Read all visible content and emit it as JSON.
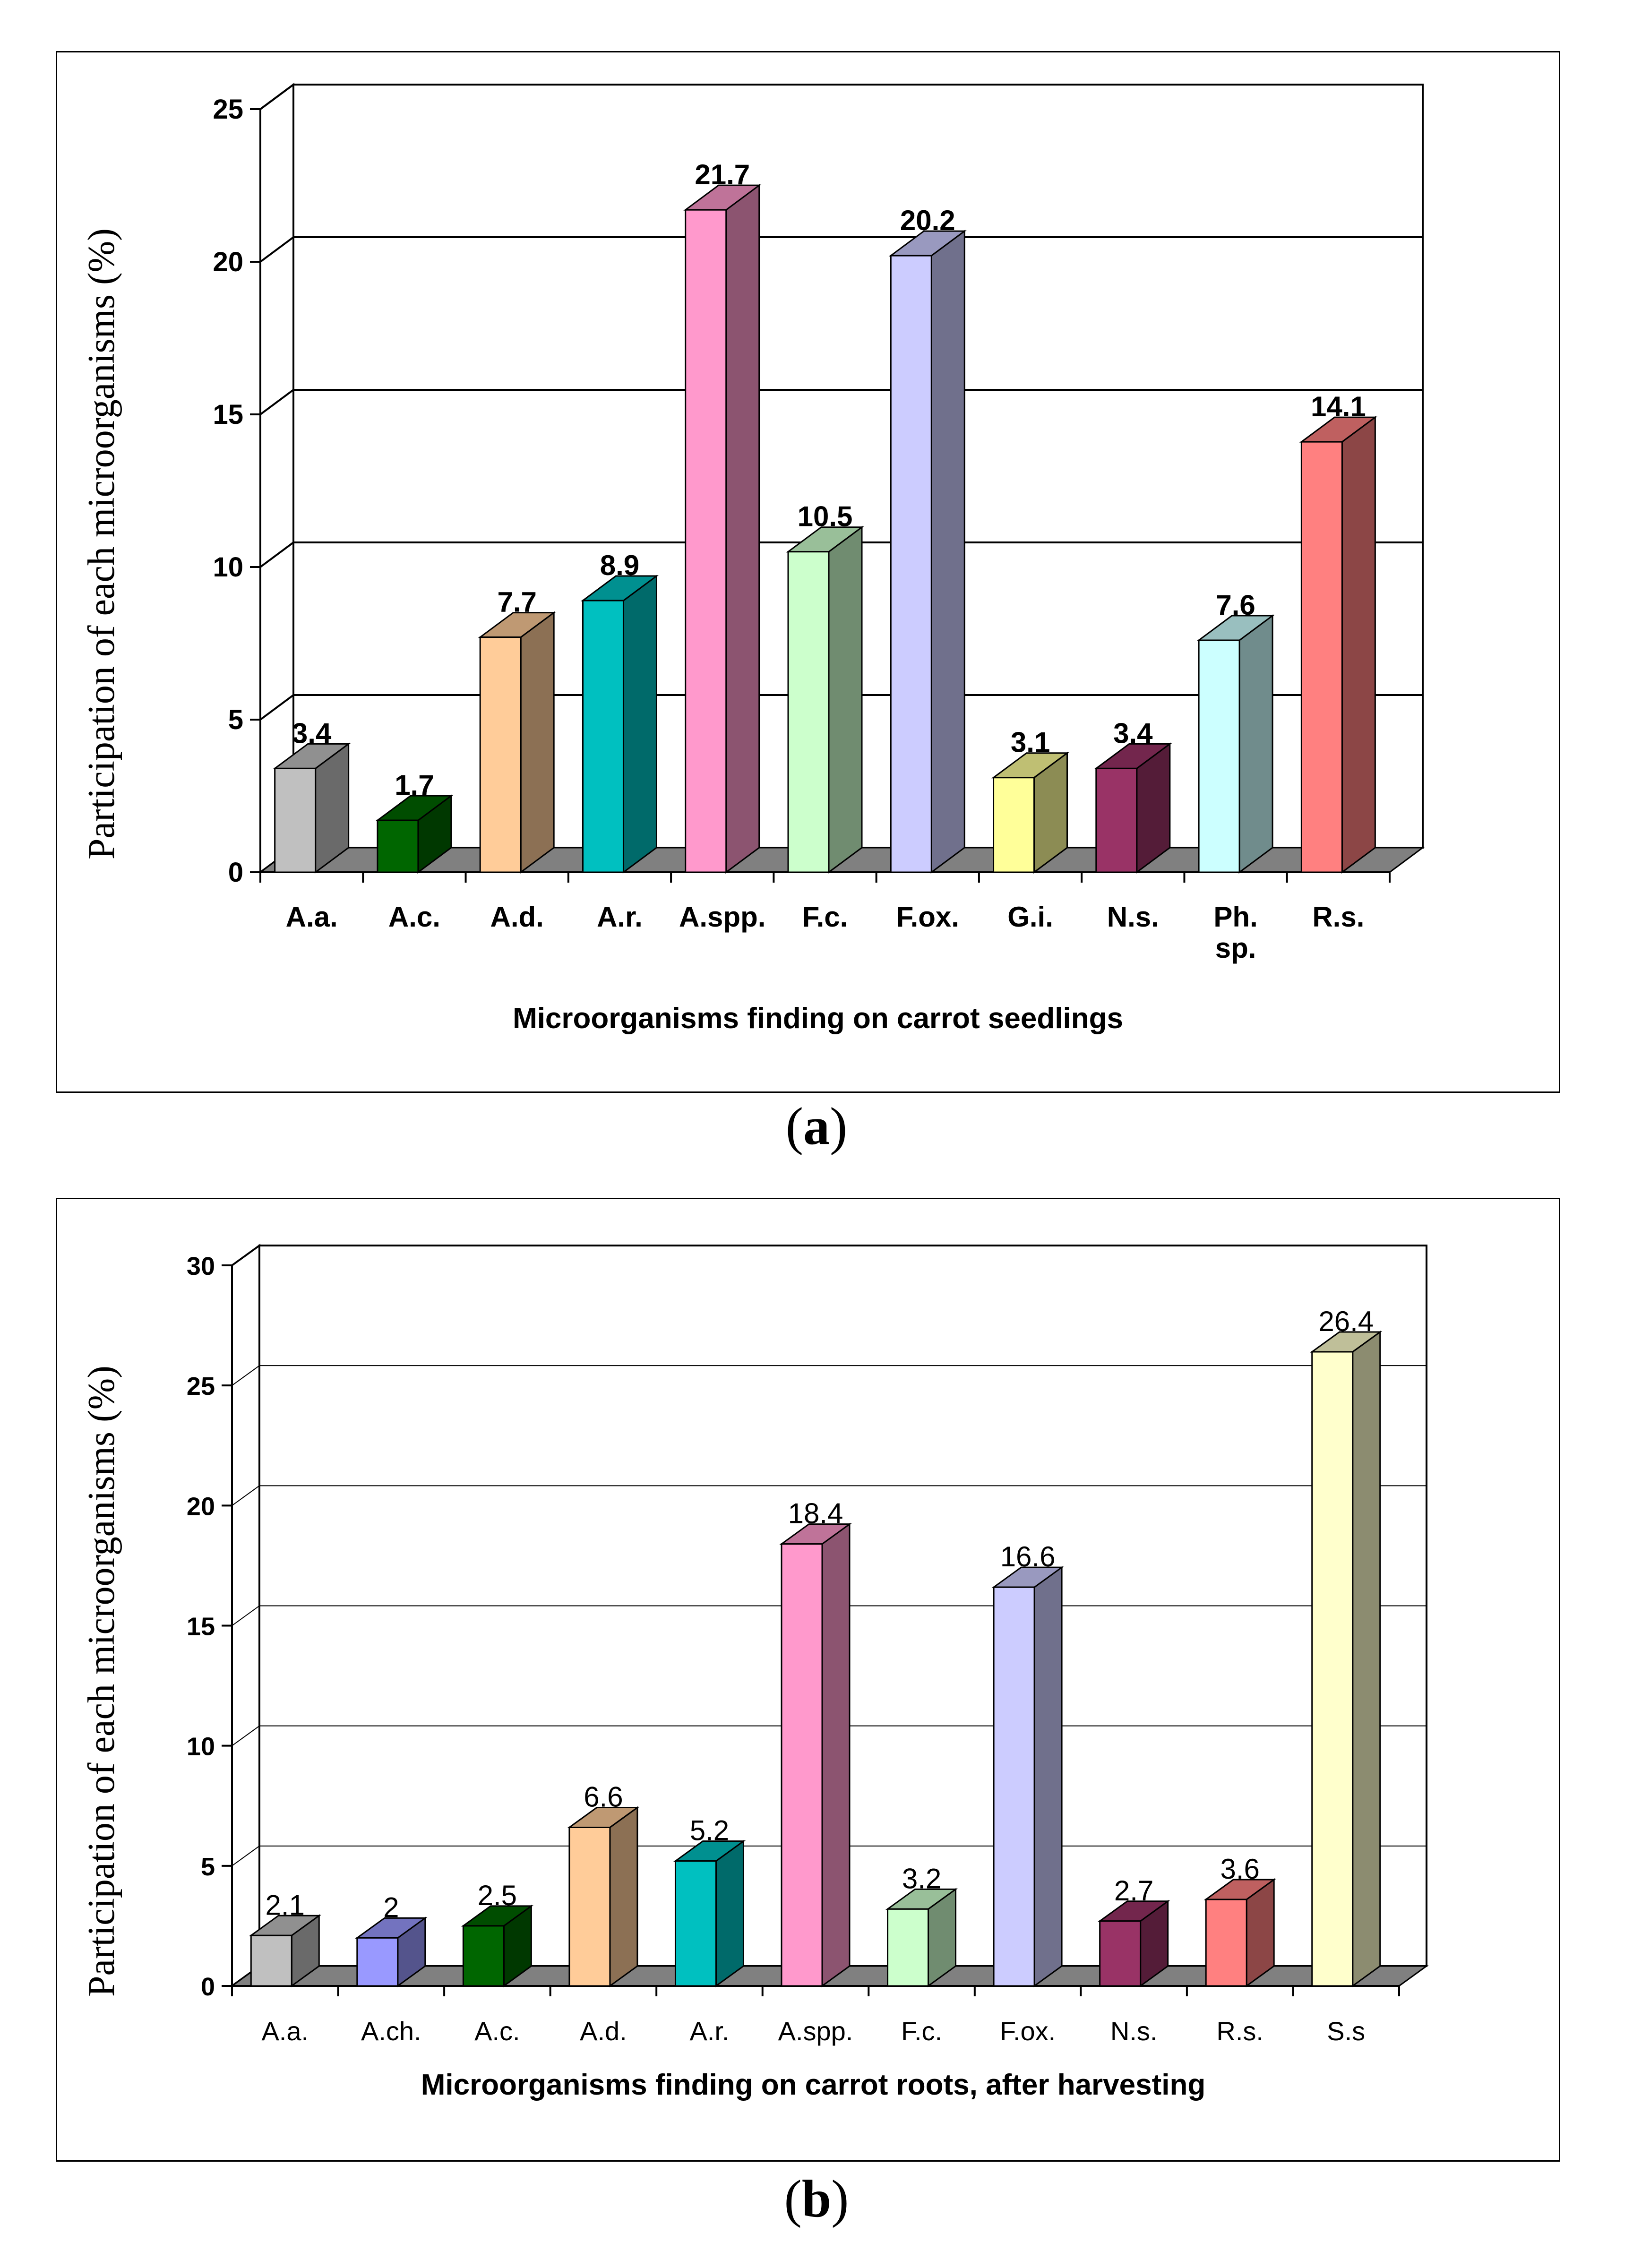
{
  "chart_data": [
    {
      "type": "bar",
      "panel": "a",
      "categories": [
        "A.a.",
        "A.c.",
        "A.d.",
        "A.r.",
        "A.spp.",
        "F.c.",
        "F.ox.",
        "G.i.",
        "N.s.",
        "Ph. sp.",
        "R.s."
      ],
      "category_lines": [
        [
          "A.a."
        ],
        [
          "A.c."
        ],
        [
          "A.d."
        ],
        [
          "A.r."
        ],
        [
          "A.spp."
        ],
        [
          "F.c."
        ],
        [
          "F.ox."
        ],
        [
          "G.i."
        ],
        [
          "N.s."
        ],
        [
          "Ph.",
          "sp."
        ],
        [
          "R.s."
        ]
      ],
      "values": [
        3.4,
        1.7,
        7.7,
        8.9,
        21.7,
        10.5,
        20.2,
        3.1,
        3.4,
        7.6,
        14.1
      ],
      "data_labels": [
        "3.4",
        "1.7",
        "7.7",
        "8.9",
        "21.7",
        "10.5",
        "20.2",
        "3.1",
        "3.4",
        "7.6",
        "14.1"
      ],
      "colors": [
        "#c0c0c0",
        "#006600",
        "#ffcc99",
        "#00c0c0",
        "#ff99cc",
        "#ccffcc",
        "#ccccff",
        "#ffff99",
        "#993366",
        "#ccffff",
        "#ff8080"
      ],
      "xlabel": "Microorganisms finding on carrot seedlings",
      "ylabel": "Participation of each microorganisms (%)",
      "ylim": [
        0,
        25
      ],
      "yticks": [
        0,
        5,
        10,
        15,
        20,
        25
      ],
      "ytick_labels": [
        "0",
        "5",
        "10",
        "15",
        "20",
        "25"
      ],
      "grid": true,
      "legend": "none"
    },
    {
      "type": "bar",
      "panel": "b",
      "categories": [
        "A.a.",
        "A.ch.",
        "A.c.",
        "A.d.",
        "A.r.",
        "A.spp.",
        "F.c.",
        "F.ox.",
        "N.s.",
        "R.s.",
        "S.s"
      ],
      "category_lines": [
        [
          "A.a."
        ],
        [
          "A.ch."
        ],
        [
          "A.c."
        ],
        [
          "A.d."
        ],
        [
          "A.r."
        ],
        [
          "A.spp."
        ],
        [
          "F.c."
        ],
        [
          "F.ox."
        ],
        [
          "N.s."
        ],
        [
          "R.s."
        ],
        [
          "S.s"
        ]
      ],
      "values": [
        2.1,
        2,
        2.5,
        6.6,
        5.2,
        18.4,
        3.2,
        16.6,
        2.7,
        3.6,
        26.4
      ],
      "data_labels": [
        "2.1",
        "2",
        "2.5",
        "6.6",
        "5.2",
        "18.4",
        "3.2",
        "16.6",
        "2.7",
        "3.6",
        "26.4"
      ],
      "colors": [
        "#c0c0c0",
        "#9999ff",
        "#006600",
        "#ffcc99",
        "#00c0c0",
        "#ff99cc",
        "#ccffcc",
        "#ccccff",
        "#993366",
        "#ff8080",
        "#ffffcc"
      ],
      "xlabel": "Microorganisms finding on carrot roots, after harvesting",
      "ylabel": "Participation of each microorganisms (%)",
      "ylim": [
        0,
        30
      ],
      "yticks": [
        0,
        5,
        10,
        15,
        20,
        25,
        30
      ],
      "ytick_labels": [
        "0",
        "5",
        "10",
        "15",
        "20",
        "25",
        "30"
      ],
      "grid": true,
      "legend": "none"
    }
  ],
  "captions": {
    "a": "a",
    "b": "b"
  }
}
